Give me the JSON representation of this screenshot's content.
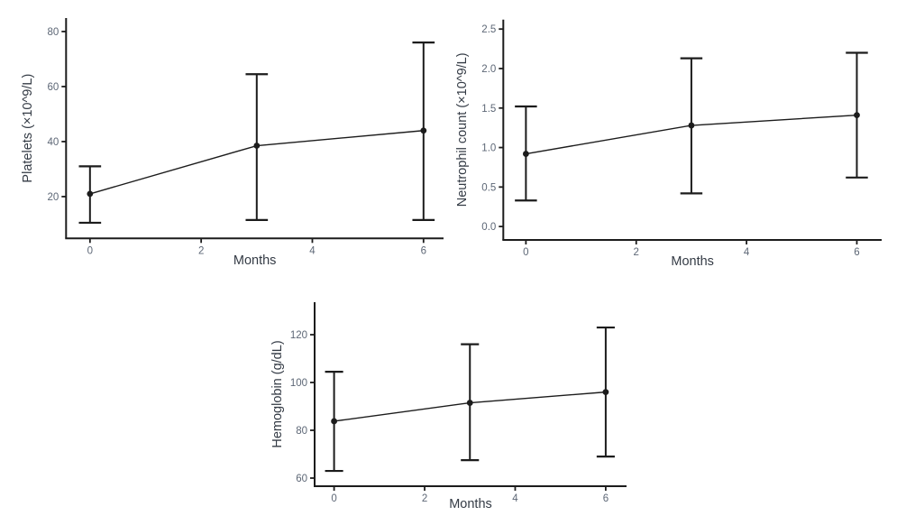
{
  "figure": {
    "background": "#ffffff",
    "description_visible_text_only": true
  },
  "colors": {
    "axis": "#1c1c1c",
    "series": "#1c1c1c",
    "tick_label": "#5d6776",
    "axis_title": "#343b45"
  },
  "chart_data": [
    {
      "id": "platelets",
      "type": "line",
      "title": "",
      "xlabel": "Months",
      "ylabel": "Platelets (×10^9/L)",
      "legend_position": "none",
      "grid": false,
      "error_bars": true,
      "xlim": [
        -0.43,
        6.36
      ],
      "ylim": [
        4.8,
        84.9
      ],
      "xticks": [
        0,
        2,
        4,
        6
      ],
      "xtick_labels": [
        "0",
        "2",
        "4",
        "6"
      ],
      "yticks": [
        20,
        40,
        60,
        80
      ],
      "ytick_labels": [
        "20",
        "40",
        "60",
        "80"
      ],
      "series": [
        {
          "name": "Platelets (×10^9/L)",
          "x": [
            0,
            3,
            6
          ],
          "y": [
            21,
            38.5,
            44
          ],
          "err_low": [
            10.5,
            11.5,
            11.5
          ],
          "err_high": [
            31,
            64.5,
            76
          ]
        }
      ]
    },
    {
      "id": "neutrophils",
      "type": "line",
      "title": "",
      "xlabel": "Months",
      "ylabel": "Neutrophil count (×10^9/L)",
      "legend_position": "none",
      "grid": false,
      "error_bars": true,
      "xlim": [
        -0.41,
        6.45
      ],
      "ylim": [
        -0.17,
        2.62
      ],
      "xticks": [
        0,
        2,
        4,
        6
      ],
      "xtick_labels": [
        "0",
        "2",
        "4",
        "6"
      ],
      "yticks": [
        0,
        0.5,
        1,
        1.5,
        2,
        2.5
      ],
      "ytick_labels": [
        "0.0",
        "0.5",
        "1.0",
        "1.5",
        "2.0",
        "2.5"
      ],
      "series": [
        {
          "name": "Neutrophil count (×10^9/L)",
          "x": [
            0,
            3,
            6
          ],
          "y": [
            0.92,
            1.28,
            1.41
          ],
          "err_low": [
            0.33,
            0.42,
            0.62
          ],
          "err_high": [
            1.52,
            2.13,
            2.2
          ]
        }
      ]
    },
    {
      "id": "hemoglobin",
      "type": "line",
      "title": "",
      "xlabel": "Months",
      "ylabel": "Hemoglobin (g/dL)",
      "legend_position": "none",
      "grid": false,
      "error_bars": true,
      "xlim": [
        -0.43,
        6.46
      ],
      "ylim": [
        56.6,
        133.6
      ],
      "xticks": [
        0,
        2,
        4,
        6
      ],
      "xtick_labels": [
        "0",
        "2",
        "4",
        "6"
      ],
      "yticks": [
        60,
        80,
        100,
        120
      ],
      "ytick_labels": [
        "60",
        "80",
        "100",
        "120"
      ],
      "series": [
        {
          "name": "Hemoglobin (g/dL)",
          "x": [
            0,
            3,
            6
          ],
          "y": [
            83.8,
            91.5,
            96
          ],
          "err_low": [
            63,
            67.5,
            69
          ],
          "err_high": [
            104.5,
            116,
            123
          ]
        }
      ]
    }
  ]
}
